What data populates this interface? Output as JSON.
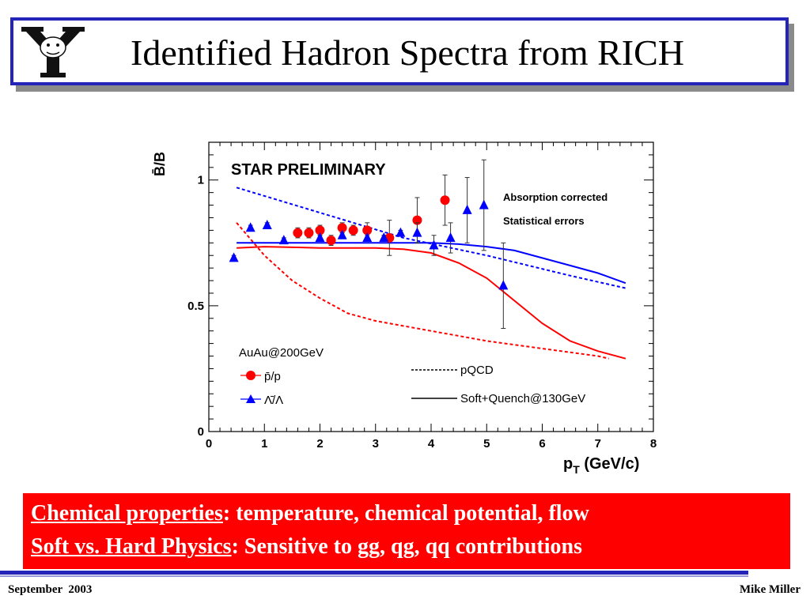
{
  "slide": {
    "title": "Identified Hadron Spectra from RICH",
    "logo": "Y-bulldog-logo",
    "bullets": [
      {
        "term": "Chemical properties",
        "text": ": temperature, chemical potential, flow"
      },
      {
        "term": "Soft vs. Hard Physics",
        "text": ": Sensitive to gg, qg, qq contributions"
      }
    ],
    "footer_left": "September  2003",
    "footer_right": "Mike Miller"
  },
  "colors": {
    "title_border": "#2424b8",
    "banner": "#ff0000",
    "pbar_p": "#ff0000",
    "lambda": "#0000ff"
  },
  "chart_data": {
    "type": "scatter",
    "title": "STAR PRELIMINARY",
    "xlabel_main": "p",
    "xlabel_sub": "T",
    "xlabel_tail": " (GeV/c)",
    "ylabel": "B̄/B",
    "xlim": [
      0,
      8
    ],
    "ylim": [
      0,
      1.15
    ],
    "xticks": [
      "0",
      "1",
      "2",
      "3",
      "4",
      "5",
      "6",
      "7",
      "8"
    ],
    "yticks": [
      {
        "label": "0",
        "value": 0
      },
      {
        "label": "0.5",
        "value": 0.5
      },
      {
        "label": "1",
        "value": 1
      }
    ],
    "annotations": [
      "Absorption corrected",
      "Statistical errors",
      "AuAu@200GeV"
    ],
    "series": [
      {
        "name": "p̄/p",
        "kind": "points",
        "marker": "circle",
        "color": "#ff0000",
        "points": [
          {
            "x": 1.6,
            "y": 0.79,
            "err": 0.02
          },
          {
            "x": 1.8,
            "y": 0.79,
            "err": 0.02
          },
          {
            "x": 2.0,
            "y": 0.8,
            "err": 0.02
          },
          {
            "x": 2.2,
            "y": 0.76,
            "err": 0.02
          },
          {
            "x": 2.4,
            "y": 0.81,
            "err": 0.02
          },
          {
            "x": 2.6,
            "y": 0.8,
            "err": 0.02
          },
          {
            "x": 2.85,
            "y": 0.8,
            "err": 0.03
          },
          {
            "x": 3.25,
            "y": 0.77,
            "err": 0.07
          },
          {
            "x": 3.75,
            "y": 0.84,
            "err": 0.09
          },
          {
            "x": 4.25,
            "y": 0.92,
            "err": 0.1
          }
        ]
      },
      {
        "name": "Λ̄/Λ",
        "kind": "points",
        "marker": "triangle",
        "color": "#0000ff",
        "points": [
          {
            "x": 0.45,
            "y": 0.69,
            "err": 0.01
          },
          {
            "x": 0.75,
            "y": 0.81,
            "err": 0.01
          },
          {
            "x": 1.05,
            "y": 0.82,
            "err": 0.01
          },
          {
            "x": 1.35,
            "y": 0.76,
            "err": 0.01
          },
          {
            "x": 2.0,
            "y": 0.77,
            "err": 0.01
          },
          {
            "x": 2.4,
            "y": 0.78,
            "err": 0.01
          },
          {
            "x": 2.85,
            "y": 0.77,
            "err": 0.01
          },
          {
            "x": 3.15,
            "y": 0.77,
            "err": 0.01
          },
          {
            "x": 3.45,
            "y": 0.79,
            "err": 0.01
          },
          {
            "x": 3.75,
            "y": 0.79,
            "err": 0.04
          },
          {
            "x": 4.05,
            "y": 0.74,
            "err": 0.04
          },
          {
            "x": 4.35,
            "y": 0.77,
            "err": 0.06
          },
          {
            "x": 4.65,
            "y": 0.88,
            "err": 0.13
          },
          {
            "x": 4.95,
            "y": 0.9,
            "err": 0.18
          },
          {
            "x": 5.3,
            "y": 0.58,
            "err": 0.17
          }
        ]
      },
      {
        "name": "",
        "kind": "line",
        "style": "dashed",
        "color": "#0000ff",
        "points": [
          [
            0.5,
            0.97
          ],
          [
            2,
            0.87
          ],
          [
            3.5,
            0.77
          ],
          [
            5,
            0.7
          ],
          [
            6.5,
            0.62
          ],
          [
            7.5,
            0.57
          ]
        ]
      },
      {
        "name": "",
        "kind": "line",
        "style": "dashed",
        "color": "#ff0000",
        "points": [
          [
            0.5,
            0.83
          ],
          [
            1,
            0.7
          ],
          [
            1.5,
            0.6
          ],
          [
            2,
            0.53
          ],
          [
            2.5,
            0.47
          ],
          [
            3,
            0.44
          ],
          [
            4,
            0.4
          ],
          [
            5,
            0.36
          ],
          [
            6,
            0.33
          ],
          [
            7,
            0.3
          ],
          [
            7.2,
            0.29
          ]
        ]
      },
      {
        "name": "",
        "kind": "line",
        "style": "solid",
        "color": "#0000ff",
        "points": [
          [
            0.5,
            0.75
          ],
          [
            2,
            0.75
          ],
          [
            3,
            0.75
          ],
          [
            4,
            0.75
          ],
          [
            4.5,
            0.745
          ],
          [
            5,
            0.735
          ],
          [
            5.5,
            0.72
          ],
          [
            6,
            0.69
          ],
          [
            6.5,
            0.66
          ],
          [
            7,
            0.63
          ],
          [
            7.5,
            0.59
          ]
        ]
      },
      {
        "name": "",
        "kind": "line",
        "style": "solid",
        "color": "#ff0000",
        "points": [
          [
            0.5,
            0.73
          ],
          [
            1,
            0.735
          ],
          [
            2,
            0.73
          ],
          [
            3,
            0.73
          ],
          [
            3.5,
            0.725
          ],
          [
            4,
            0.71
          ],
          [
            4.5,
            0.67
          ],
          [
            5,
            0.61
          ],
          [
            5.5,
            0.52
          ],
          [
            6,
            0.43
          ],
          [
            6.5,
            0.36
          ],
          [
            7,
            0.32
          ],
          [
            7.5,
            0.29
          ]
        ]
      }
    ],
    "legend": {
      "placement": "bottom",
      "entries": [
        {
          "label": "p̄/p",
          "marker": "circle",
          "color": "#ff0000"
        },
        {
          "label": "Λ̄/Λ",
          "marker": "triangle",
          "color": "#0000ff"
        },
        {
          "label": "pQCD",
          "line": "dashed",
          "color": "#000000"
        },
        {
          "label": "Soft+Quench@130GeV",
          "line": "solid",
          "color": "#000000"
        }
      ]
    }
  }
}
